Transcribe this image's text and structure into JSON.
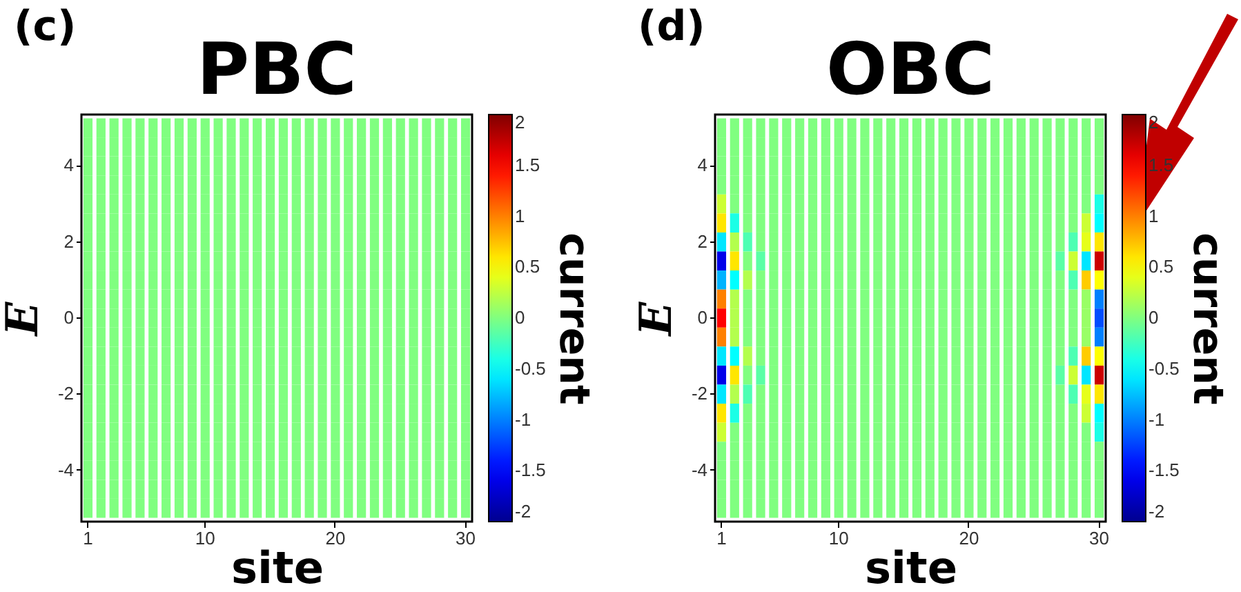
{
  "chart_data": [
    {
      "type": "heatmap",
      "title": "PBC",
      "xlabel": "site",
      "ylabel": "E",
      "clabel": "current",
      "annotations": [
        "(c)"
      ],
      "categories": [
        "1",
        null,
        null,
        null,
        null,
        null,
        null,
        null,
        null,
        "10",
        null,
        null,
        null,
        null,
        null,
        null,
        null,
        null,
        null,
        "20",
        null,
        null,
        null,
        null,
        null,
        null,
        null,
        null,
        null,
        "30"
      ],
      "y_categories": [
        null,
        null,
        "4",
        null,
        null,
        null,
        "2",
        null,
        null,
        null,
        "0",
        null,
        null,
        null,
        "-2",
        null,
        null,
        null,
        "-4",
        null,
        null
      ],
      "clim": [
        -2,
        2
      ],
      "cticks": [
        -2,
        -1.5,
        -1,
        -0.5,
        0,
        0.5,
        1,
        1.5,
        2
      ],
      "cells": [
        [
          0,
          0,
          0,
          0,
          0,
          0,
          0,
          0,
          0,
          0,
          0,
          0,
          0,
          0,
          0,
          0,
          0,
          0,
          0,
          0,
          0,
          0,
          0,
          0,
          0,
          0,
          0,
          0,
          0,
          0
        ],
        [
          0,
          0,
          0,
          0,
          0,
          0,
          0,
          0,
          0,
          0,
          0,
          0,
          0,
          0,
          0,
          0,
          0,
          0,
          0,
          0,
          0,
          0,
          0,
          0,
          0,
          0,
          0,
          0,
          0,
          0
        ],
        [
          0,
          0,
          0,
          0,
          0,
          0,
          0,
          0,
          0,
          0,
          0,
          0,
          0,
          0,
          0,
          0,
          0,
          0,
          0,
          0,
          0,
          0,
          0,
          0,
          0,
          0,
          0,
          0,
          0,
          0
        ],
        [
          0,
          0,
          0,
          0,
          0,
          0,
          0,
          0,
          0,
          0,
          0,
          0,
          0,
          0,
          0,
          0,
          0,
          0,
          0,
          0,
          0,
          0,
          0,
          0,
          0,
          0,
          0,
          0,
          0,
          0
        ],
        [
          0,
          0,
          0,
          0,
          0,
          0,
          0,
          0,
          0,
          0,
          0,
          0,
          0,
          0,
          0,
          0,
          0,
          0,
          0,
          0,
          0,
          0,
          0,
          0,
          0,
          0,
          0,
          0,
          0,
          0
        ],
        [
          0,
          0,
          0,
          0,
          0,
          0,
          0,
          0,
          0,
          0,
          0,
          0,
          0,
          0,
          0,
          0,
          0,
          0,
          0,
          0,
          0,
          0,
          0,
          0,
          0,
          0,
          0,
          0,
          0,
          0
        ],
        [
          0,
          0,
          0,
          0,
          0,
          0,
          0,
          0,
          0,
          0,
          0,
          0,
          0,
          0,
          0,
          0,
          0,
          0,
          0,
          0,
          0,
          0,
          0,
          0,
          0,
          0,
          0,
          0,
          0,
          0
        ],
        [
          0,
          0,
          0,
          0,
          0,
          0,
          0,
          0,
          0,
          0,
          0,
          0,
          0,
          0,
          0,
          0,
          0,
          0,
          0,
          0,
          0,
          0,
          0,
          0,
          0,
          0,
          0,
          0,
          0,
          0
        ],
        [
          0,
          0,
          0,
          0,
          0,
          0,
          0,
          0,
          0,
          0,
          0,
          0,
          0,
          0,
          0,
          0,
          0,
          0,
          0,
          0,
          0,
          0,
          0,
          0,
          0,
          0,
          0,
          0,
          0,
          0
        ],
        [
          0,
          0,
          0,
          0,
          0,
          0,
          0,
          0,
          0,
          0,
          0,
          0,
          0,
          0,
          0,
          0,
          0,
          0,
          0,
          0,
          0,
          0,
          0,
          0,
          0,
          0,
          0,
          0,
          0,
          0
        ],
        [
          0,
          0,
          0,
          0,
          0,
          0,
          0,
          0,
          0,
          0,
          0,
          0,
          0,
          0,
          0,
          0,
          0,
          0,
          0,
          0,
          0,
          0,
          0,
          0,
          0,
          0,
          0,
          0,
          0,
          0
        ],
        [
          0,
          0,
          0,
          0,
          0,
          0,
          0,
          0,
          0,
          0,
          0,
          0,
          0,
          0,
          0,
          0,
          0,
          0,
          0,
          0,
          0,
          0,
          0,
          0,
          0,
          0,
          0,
          0,
          0,
          0
        ],
        [
          0,
          0,
          0,
          0,
          0,
          0,
          0,
          0,
          0,
          0,
          0,
          0,
          0,
          0,
          0,
          0,
          0,
          0,
          0,
          0,
          0,
          0,
          0,
          0,
          0,
          0,
          0,
          0,
          0,
          0
        ],
        [
          0,
          0,
          0,
          0,
          0,
          0,
          0,
          0,
          0,
          0,
          0,
          0,
          0,
          0,
          0,
          0,
          0,
          0,
          0,
          0,
          0,
          0,
          0,
          0,
          0,
          0,
          0,
          0,
          0,
          0
        ],
        [
          0,
          0,
          0,
          0,
          0,
          0,
          0,
          0,
          0,
          0,
          0,
          0,
          0,
          0,
          0,
          0,
          0,
          0,
          0,
          0,
          0,
          0,
          0,
          0,
          0,
          0,
          0,
          0,
          0,
          0
        ],
        [
          0,
          0,
          0,
          0,
          0,
          0,
          0,
          0,
          0,
          0,
          0,
          0,
          0,
          0,
          0,
          0,
          0,
          0,
          0,
          0,
          0,
          0,
          0,
          0,
          0,
          0,
          0,
          0,
          0,
          0
        ],
        [
          0,
          0,
          0,
          0,
          0,
          0,
          0,
          0,
          0,
          0,
          0,
          0,
          0,
          0,
          0,
          0,
          0,
          0,
          0,
          0,
          0,
          0,
          0,
          0,
          0,
          0,
          0,
          0,
          0,
          0
        ],
        [
          0,
          0,
          0,
          0,
          0,
          0,
          0,
          0,
          0,
          0,
          0,
          0,
          0,
          0,
          0,
          0,
          0,
          0,
          0,
          0,
          0,
          0,
          0,
          0,
          0,
          0,
          0,
          0,
          0,
          0
        ],
        [
          0,
          0,
          0,
          0,
          0,
          0,
          0,
          0,
          0,
          0,
          0,
          0,
          0,
          0,
          0,
          0,
          0,
          0,
          0,
          0,
          0,
          0,
          0,
          0,
          0,
          0,
          0,
          0,
          0,
          0
        ],
        [
          0,
          0,
          0,
          0,
          0,
          0,
          0,
          0,
          0,
          0,
          0,
          0,
          0,
          0,
          0,
          0,
          0,
          0,
          0,
          0,
          0,
          0,
          0,
          0,
          0,
          0,
          0,
          0,
          0,
          0
        ],
        [
          0,
          0,
          0,
          0,
          0,
          0,
          0,
          0,
          0,
          0,
          0,
          0,
          0,
          0,
          0,
          0,
          0,
          0,
          0,
          0,
          0,
          0,
          0,
          0,
          0,
          0,
          0,
          0,
          0,
          0
        ]
      ]
    },
    {
      "type": "heatmap",
      "title": "OBC",
      "xlabel": "site",
      "ylabel": "E",
      "clabel": "current",
      "annotations": [
        "(d)"
      ],
      "categories": [
        "1",
        null,
        null,
        null,
        null,
        null,
        null,
        null,
        null,
        "10",
        null,
        null,
        null,
        null,
        null,
        null,
        null,
        null,
        null,
        "20",
        null,
        null,
        null,
        null,
        null,
        null,
        null,
        null,
        null,
        "30"
      ],
      "y_categories": [
        null,
        null,
        "4",
        null,
        null,
        null,
        "2",
        null,
        null,
        null,
        "0",
        null,
        null,
        null,
        "-2",
        null,
        null,
        null,
        "-4",
        null,
        null
      ],
      "clim": [
        -2,
        2
      ],
      "cticks": [
        -2,
        -1.5,
        -1,
        -0.5,
        0,
        0.5,
        1,
        1.5,
        2
      ],
      "cells": [
        [
          0,
          0,
          0,
          0,
          0,
          0,
          0,
          0,
          0,
          0,
          0,
          0,
          0,
          0,
          0,
          0,
          0,
          0,
          0,
          0,
          0,
          0,
          0,
          0,
          0,
          0,
          0,
          0,
          0,
          0
        ],
        [
          0,
          0,
          0,
          0,
          0,
          0,
          0,
          0,
          0,
          0,
          0,
          0,
          0,
          0,
          0,
          0,
          0,
          0,
          0,
          0,
          0,
          0,
          0,
          0,
          0,
          0,
          0,
          0,
          0,
          0
        ],
        [
          0,
          0,
          0,
          0,
          0,
          0,
          0,
          0,
          0,
          0,
          0,
          0,
          0,
          0,
          0,
          0,
          0,
          0,
          0,
          0,
          0,
          0,
          0,
          0,
          0,
          0,
          0,
          0,
          0,
          0
        ],
        [
          0,
          0,
          0,
          0,
          0,
          0,
          0,
          0,
          0,
          0,
          0,
          0,
          0,
          0,
          0,
          0,
          0,
          0,
          0,
          0,
          0,
          0,
          0,
          0,
          0,
          0,
          0,
          0,
          0,
          0
        ],
        [
          0.3,
          0,
          0,
          0,
          0,
          0,
          0,
          0,
          0,
          0,
          0,
          0,
          0,
          0,
          0,
          0,
          0,
          0,
          0,
          0,
          0,
          0,
          0,
          0,
          0,
          0,
          0,
          0,
          0,
          -0.4
        ],
        [
          0.6,
          -0.4,
          0,
          0,
          0,
          0,
          0,
          0,
          0,
          0,
          0,
          0,
          0,
          0,
          0,
          0,
          0,
          0,
          0,
          0,
          0,
          0,
          0,
          0,
          0,
          0,
          0,
          0,
          0.3,
          -0.5
        ],
        [
          -0.6,
          0.2,
          -0.2,
          0,
          0,
          0,
          0,
          0,
          0,
          0,
          0,
          0,
          0,
          0,
          0,
          0,
          0,
          0,
          0,
          0,
          0,
          0,
          0,
          0,
          0,
          0,
          0,
          -0.2,
          0.4,
          0.6
        ],
        [
          -1.6,
          0.6,
          0,
          -0.15,
          0,
          0,
          0,
          0,
          0,
          0,
          0,
          0,
          0,
          0,
          0,
          0,
          0,
          0,
          0,
          0,
          0,
          0,
          0,
          0,
          0,
          0,
          -0.15,
          0.3,
          -0.6,
          1.7
        ],
        [
          -0.8,
          -0.5,
          0.2,
          0,
          0,
          0,
          0,
          0,
          0,
          0,
          0,
          0,
          0,
          0,
          0,
          0,
          0,
          0,
          0,
          0,
          0,
          0,
          0,
          0,
          0,
          0,
          0,
          -0.2,
          0.7,
          0.5
        ],
        [
          1,
          0.2,
          0,
          0,
          0,
          0,
          0,
          0,
          0,
          0,
          0,
          0,
          0,
          0,
          0,
          0,
          0,
          0,
          0,
          0,
          0,
          0,
          0,
          0,
          0,
          0,
          0,
          0,
          0.1,
          -1
        ],
        [
          1.5,
          0.2,
          0,
          0,
          0,
          0,
          0,
          0,
          0,
          0,
          0,
          0,
          0,
          0,
          0,
          0,
          0,
          0,
          0,
          0,
          0,
          0,
          0,
          0,
          0,
          0,
          0,
          0,
          0.1,
          -1.2
        ],
        [
          1,
          0.2,
          0,
          0,
          0,
          0,
          0,
          0,
          0,
          0,
          0,
          0,
          0,
          0,
          0,
          0,
          0,
          0,
          0,
          0,
          0,
          0,
          0,
          0,
          0,
          0,
          0,
          0,
          0.1,
          -1
        ],
        [
          -0.6,
          -0.5,
          0.2,
          0,
          0,
          0,
          0,
          0,
          0,
          0,
          0,
          0,
          0,
          0,
          0,
          0,
          0,
          0,
          0,
          0,
          0,
          0,
          0,
          0,
          0,
          0,
          0,
          -0.2,
          0.7,
          0.5
        ],
        [
          -1.6,
          0.6,
          0,
          -0.15,
          0,
          0,
          0,
          0,
          0,
          0,
          0,
          0,
          0,
          0,
          0,
          0,
          0,
          0,
          0,
          0,
          0,
          0,
          0,
          0,
          0,
          0,
          -0.15,
          0.3,
          -0.6,
          1.7
        ],
        [
          -0.6,
          0.2,
          -0.2,
          0,
          0,
          0,
          0,
          0,
          0,
          0,
          0,
          0,
          0,
          0,
          0,
          0,
          0,
          0,
          0,
          0,
          0,
          0,
          0,
          0,
          0,
          0,
          0,
          -0.2,
          0.4,
          0.6
        ],
        [
          0.6,
          -0.4,
          0,
          0,
          0,
          0,
          0,
          0,
          0,
          0,
          0,
          0,
          0,
          0,
          0,
          0,
          0,
          0,
          0,
          0,
          0,
          0,
          0,
          0,
          0,
          0,
          0,
          0,
          0.3,
          -0.5
        ],
        [
          0.3,
          0,
          0,
          0,
          0,
          0,
          0,
          0,
          0,
          0,
          0,
          0,
          0,
          0,
          0,
          0,
          0,
          0,
          0,
          0,
          0,
          0,
          0,
          0,
          0,
          0,
          0,
          0,
          0,
          -0.4
        ],
        [
          0,
          0,
          0,
          0,
          0,
          0,
          0,
          0,
          0,
          0,
          0,
          0,
          0,
          0,
          0,
          0,
          0,
          0,
          0,
          0,
          0,
          0,
          0,
          0,
          0,
          0,
          0,
          0,
          0,
          0
        ],
        [
          0,
          0,
          0,
          0,
          0,
          0,
          0,
          0,
          0,
          0,
          0,
          0,
          0,
          0,
          0,
          0,
          0,
          0,
          0,
          0,
          0,
          0,
          0,
          0,
          0,
          0,
          0,
          0,
          0,
          0
        ],
        [
          0,
          0,
          0,
          0,
          0,
          0,
          0,
          0,
          0,
          0,
          0,
          0,
          0,
          0,
          0,
          0,
          0,
          0,
          0,
          0,
          0,
          0,
          0,
          0,
          0,
          0,
          0,
          0,
          0,
          0
        ],
        [
          0,
          0,
          0,
          0,
          0,
          0,
          0,
          0,
          0,
          0,
          0,
          0,
          0,
          0,
          0,
          0,
          0,
          0,
          0,
          0,
          0,
          0,
          0,
          0,
          0,
          0,
          0,
          0,
          0,
          0
        ]
      ]
    }
  ]
}
